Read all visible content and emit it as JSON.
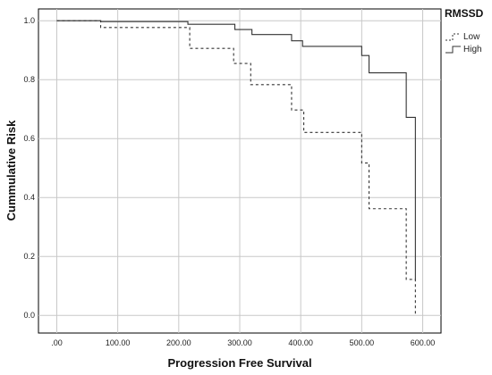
{
  "chart_data": {
    "type": "line",
    "subtype": "kaplan-meier-step",
    "xlabel": "Progression Free Survival",
    "ylabel": "Cummulative Risk",
    "xlim": [
      -30,
      630
    ],
    "ylim": [
      -0.06,
      1.04
    ],
    "x_ticks": [
      0,
      100,
      200,
      300,
      400,
      500,
      600
    ],
    "x_tick_labels": [
      ".00",
      "100.00",
      "200.00",
      "300.00",
      "400.00",
      "500.00",
      "600.00"
    ],
    "y_ticks": [
      0.0,
      0.2,
      0.4,
      0.6,
      0.8,
      1.0
    ],
    "y_tick_labels": [
      "0.0",
      "0.2",
      "0.4",
      "0.6",
      "0.8",
      "1.0"
    ],
    "grid": true,
    "legend": {
      "title": "RMSSD",
      "placement": "top-right-outside"
    },
    "series": [
      {
        "name": "Low",
        "style": "dashed",
        "color": "#333333",
        "steps": [
          [
            0,
            1.0
          ],
          [
            72,
            0.977
          ],
          [
            218,
            0.906
          ],
          [
            290,
            0.855
          ],
          [
            318,
            0.783
          ],
          [
            385,
            0.697
          ],
          [
            405,
            0.621
          ],
          [
            500,
            0.517
          ],
          [
            512,
            0.362
          ],
          [
            573,
            0.122
          ],
          [
            588,
            0.0
          ]
        ]
      },
      {
        "name": "High",
        "style": "solid",
        "color": "#333333",
        "steps": [
          [
            0,
            1.0
          ],
          [
            72,
            0.997
          ],
          [
            215,
            0.988
          ],
          [
            292,
            0.97
          ],
          [
            320,
            0.953
          ],
          [
            385,
            0.932
          ],
          [
            403,
            0.913
          ],
          [
            500,
            0.882
          ],
          [
            512,
            0.823
          ],
          [
            573,
            0.672
          ],
          [
            588,
            0.12
          ]
        ]
      }
    ]
  }
}
